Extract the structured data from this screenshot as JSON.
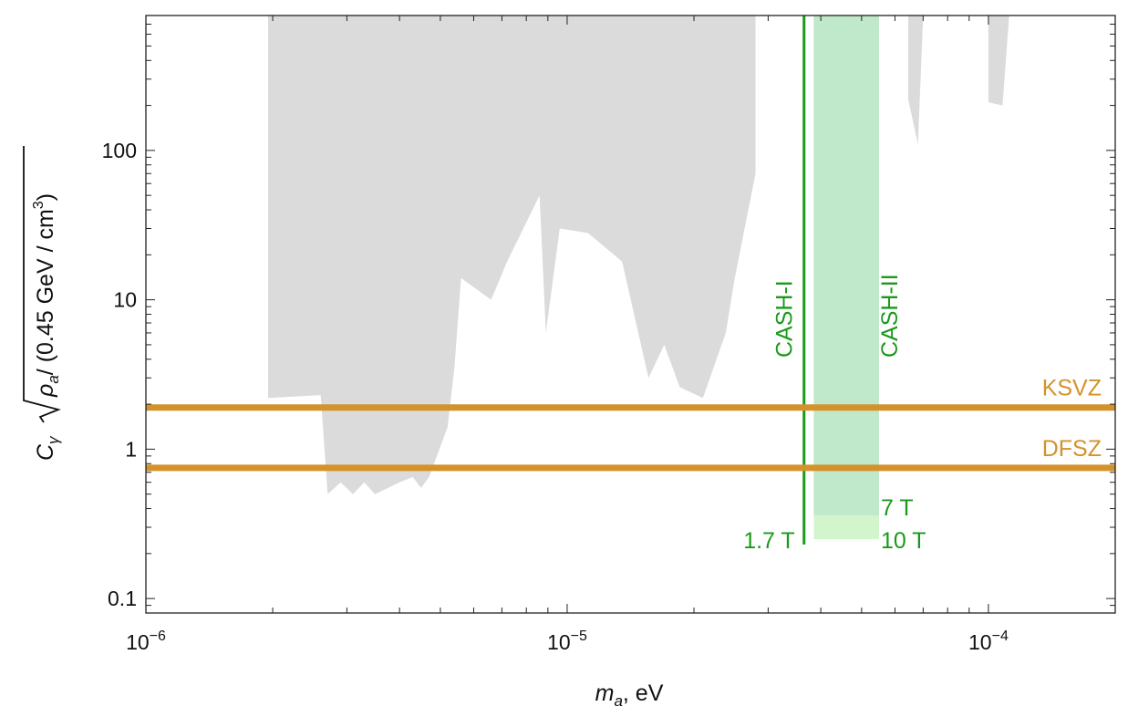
{
  "chart_data": {
    "type": "area",
    "xlabel": {
      "symbol": "m",
      "sub": "a",
      "rest": ", eV"
    },
    "ylabel": {
      "prefix": "C",
      "sub": "γ",
      "rad_symbol": "ρ",
      "rad_sub": "a",
      "rad_rest": "/ (0.45 GeV / cm",
      "rad_sup": "3",
      "rad_close": ")"
    },
    "x_scale": "log",
    "y_scale": "log",
    "xlim": [
      1e-06,
      0.0002
    ],
    "ylim": [
      0.08,
      800
    ],
    "x_ticks": [
      {
        "value": 1e-06,
        "mant": "10",
        "exp": "−6"
      },
      {
        "value": 1e-05,
        "mant": "10",
        "exp": "−5"
      },
      {
        "value": 0.0001,
        "mant": "10",
        "exp": "−4"
      }
    ],
    "y_ticks": [
      {
        "value": 0.1,
        "label": "0.1"
      },
      {
        "value": 1,
        "label": "1"
      },
      {
        "value": 10,
        "label": "10"
      },
      {
        "value": 100,
        "label": "100"
      }
    ],
    "grid": false,
    "colors": {
      "excluded": "#dbdbdb",
      "models": "#d4922a",
      "cash": "#1a9a1a",
      "cash2_7T": "#bfe9ca",
      "cash2_10T": "#d2f5cc"
    },
    "excluded_regions": [
      [
        [
          1.95e-06,
          800
        ],
        [
          1.95e-06,
          2.2
        ],
        [
          2.6e-06,
          2.3
        ],
        [
          2.7e-06,
          0.5
        ],
        [
          2.9e-06,
          0.6
        ],
        [
          3.1e-06,
          0.5
        ],
        [
          3.3e-06,
          0.6
        ],
        [
          3.5e-06,
          0.5
        ],
        [
          4e-06,
          0.6
        ],
        [
          4.3e-06,
          0.65
        ],
        [
          4.5e-06,
          0.55
        ],
        [
          4.7e-06,
          0.65
        ],
        [
          5.2e-06,
          1.4
        ],
        [
          5.4e-06,
          3.5
        ],
        [
          5.6e-06,
          14
        ],
        [
          6.6e-06,
          10
        ],
        [
          7.2e-06,
          18
        ],
        [
          8.6e-06,
          50
        ],
        [
          8.9e-06,
          6
        ],
        [
          9.6e-06,
          30
        ],
        [
          1.12e-05,
          28
        ],
        [
          1.35e-05,
          18
        ],
        [
          1.56e-05,
          3
        ],
        [
          1.7e-05,
          5
        ],
        [
          1.85e-05,
          2.6
        ],
        [
          2.1e-05,
          2.2
        ],
        [
          2.38e-05,
          6
        ],
        [
          2.5e-05,
          14
        ],
        [
          2.8e-05,
          70
        ],
        [
          2.8e-05,
          800
        ]
      ],
      [
        [
          6.45e-05,
          800
        ],
        [
          6.45e-05,
          220
        ],
        [
          6.8e-05,
          110
        ],
        [
          7e-05,
          800
        ]
      ],
      [
        [
          0.0001,
          800
        ],
        [
          0.0001,
          210
        ],
        [
          0.000108,
          200
        ],
        [
          0.000112,
          800
        ]
      ]
    ],
    "series": [
      {
        "name": "KSVZ",
        "y": 1.9
      },
      {
        "name": "DFSZ",
        "y": 0.75
      }
    ],
    "cash_regions": [
      {
        "name": "CASH-I",
        "field_label": "1.7 T",
        "type": "line",
        "x": 3.65e-05,
        "y_min": 0.23,
        "y_max": 800
      },
      {
        "name": "CASH-II",
        "type": "band",
        "x_min": 3.85e-05,
        "x_max": 5.5e-05,
        "y_min": 0.36,
        "y_max": 800,
        "field_label": "7 T"
      },
      {
        "name": "CASH-II",
        "type": "band",
        "x_min": 3.85e-05,
        "x_max": 5.5e-05,
        "y_min": 0.25,
        "y_max": 0.36,
        "field_label": "10 T"
      }
    ]
  }
}
